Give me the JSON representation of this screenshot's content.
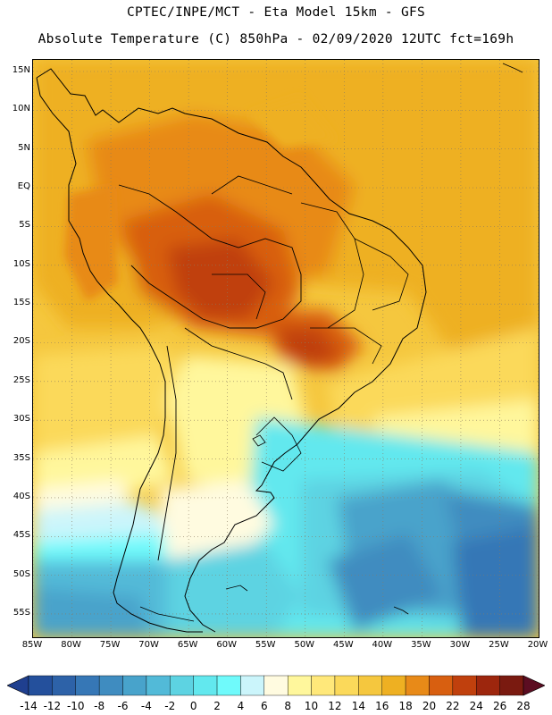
{
  "header": {
    "line1": "CPTEC/INPE/MCT -  Eta Model 15km - GFS",
    "line2": "Absolute Temperature (C) 850hPa - 02/09/2020 12UTC fct=169h"
  },
  "map": {
    "lat_labels": [
      "15N",
      "10N",
      "5N",
      "EQ",
      "5S",
      "10S",
      "15S",
      "20S",
      "25S",
      "30S",
      "35S",
      "40S",
      "45S",
      "50S",
      "55S"
    ],
    "lat_values": [
      15,
      10,
      5,
      0,
      -5,
      -10,
      -15,
      -20,
      -25,
      -30,
      -35,
      -40,
      -45,
      -50,
      -55
    ],
    "lon_labels": [
      "85W",
      "80W",
      "75W",
      "70W",
      "65W",
      "60W",
      "55W",
      "50W",
      "45W",
      "40W",
      "35W",
      "30W",
      "25W",
      "20W"
    ],
    "lon_values": [
      -85,
      -80,
      -75,
      -70,
      -65,
      -60,
      -55,
      -50,
      -45,
      -40,
      -35,
      -30,
      -25,
      -20
    ],
    "extent": {
      "lon_min": -85,
      "lon_max": -20,
      "lat_min": -58,
      "lat_max": 16.5
    },
    "grid": "dotted"
  },
  "colorbar": {
    "labels": [
      "-14",
      "-12",
      "-10",
      "-8",
      "-6",
      "-4",
      "-2",
      "0",
      "2",
      "4",
      "6",
      "8",
      "10",
      "12",
      "14",
      "16",
      "18",
      "20",
      "22",
      "24",
      "26",
      "28"
    ],
    "colors": [
      "#1f3f8f",
      "#24509c",
      "#2d62a8",
      "#3677b6",
      "#3f8cc0",
      "#48a3cb",
      "#52bad8",
      "#5dd3e2",
      "#62e8ee",
      "#6ffafb",
      "#cbf5fb",
      "#fffbe0",
      "#fff79c",
      "#ffe87a",
      "#fbd95a",
      "#f5c73e",
      "#eeb022",
      "#e88a18",
      "#d85f10",
      "#c0400d",
      "#9d260d",
      "#7a1a10",
      "#5c0d22"
    ]
  }
}
